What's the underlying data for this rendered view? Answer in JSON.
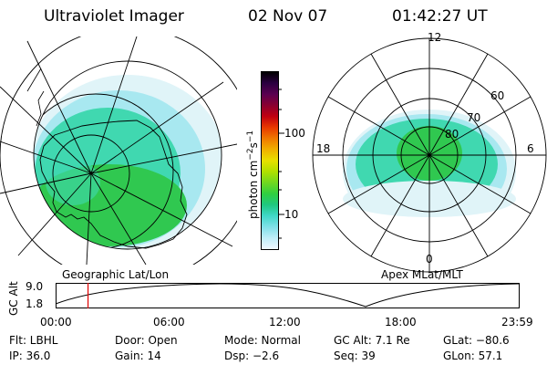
{
  "header": {
    "title": "Ultraviolet Imager",
    "date": "02 Nov 07",
    "time": "01:42:27 UT"
  },
  "colorbar": {
    "unit_label": "photon cm",
    "unit_sup1": "−2",
    "unit_mid": "s",
    "unit_sup2": "−1",
    "ticks": [
      "100",
      "10"
    ],
    "colors": [
      "#000000",
      "#2b0040",
      "#5a0050",
      "#8a0030",
      "#c00010",
      "#e83800",
      "#f07800",
      "#f0b000",
      "#e8e000",
      "#b0e000",
      "#70d820",
      "#30d040",
      "#20c880",
      "#40d8c8",
      "#80e0e8",
      "#c0eef8",
      "#f0f8ff"
    ]
  },
  "left_panel": {
    "caption": "Geographic Lat/Lon"
  },
  "right_panel": {
    "caption": "Apex MLat/MLT",
    "mlt_labels": [
      "12",
      "18",
      "6",
      "0"
    ],
    "lat_labels": [
      "60",
      "70",
      "80"
    ]
  },
  "timeline": {
    "ylabel": "GC Alt",
    "ticks_y": [
      "9.0",
      "1.8"
    ],
    "ticks_x": [
      "00:00",
      "06:00",
      "12:00",
      "18:00",
      "23:59"
    ],
    "marker_time_fraction": 0.07
  },
  "info": {
    "flt": "Flt: LBHL",
    "ip": "IP: 36.0",
    "door": "Door: Open",
    "gain": "Gain: 14",
    "mode": "Mode: Normal",
    "dsp": "Dsp:   −2.6",
    "gcalt": "GC Alt: 7.1 Re",
    "seq": "Seq: 39",
    "glat": "GLat: −80.6",
    "glon": "GLon:  57.1"
  },
  "aurora_colors": {
    "bright": "#30c850",
    "mid": "#40d8b0",
    "dim": "#a8e8f0",
    "faint": "#e0f4f8"
  }
}
